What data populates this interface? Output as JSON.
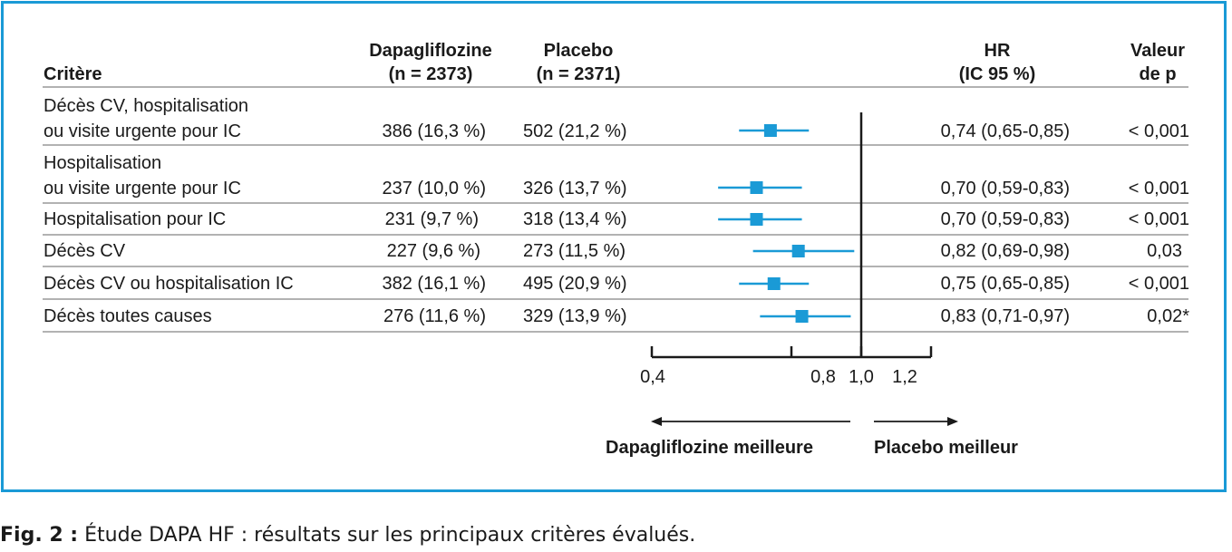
{
  "header": {
    "criterion": "Critère",
    "dapa_l1": "Dapagliflozine",
    "dapa_l2": "(n = 2373)",
    "placebo_l1": "Placebo",
    "placebo_l2": "(n = 2371)",
    "hr_l1": "HR",
    "hr_l2": "(IC 95 %)",
    "p_l1": "Valeur",
    "p_l2": "de p"
  },
  "colors": {
    "accent": "#1a9ad6",
    "text": "#1a1a1a",
    "rule": "#999999"
  },
  "chart_data": {
    "type": "forest",
    "x_ticks": [
      "0,4",
      "0,8",
      "1,0",
      "1,2"
    ],
    "x_tick_values": [
      0.4,
      0.8,
      1.0,
      1.2
    ],
    "reference_line": 1.0,
    "arrow_left_label": "Dapagliflozine meilleure",
    "arrow_right_label": "Placebo meilleur",
    "rows": [
      {
        "label_l1": "Décès CV, hospitalisation",
        "label_l2": "ou visite urgente pour IC",
        "dapa": "386 (16,3 %)",
        "placebo": "502 (21,2 %)",
        "hr_text": "0,74 (0,65-0,85)",
        "p": "< 0,001",
        "hr": 0.74,
        "lo": 0.65,
        "hi": 0.85
      },
      {
        "label_l1": "Hospitalisation",
        "label_l2": "ou visite urgente pour IC",
        "dapa": "237 (10,0 %)",
        "placebo": "326 (13,7 %)",
        "hr_text": "0,70 (0,59-0,83)",
        "p": "< 0,001",
        "hr": 0.7,
        "lo": 0.59,
        "hi": 0.83
      },
      {
        "label_l1": "",
        "label_l2": "Hospitalisation pour IC",
        "dapa": "231 (9,7 %)",
        "placebo": "318 (13,4 %)",
        "hr_text": "0,70 (0,59-0,83)",
        "p": "< 0,001",
        "hr": 0.7,
        "lo": 0.59,
        "hi": 0.83
      },
      {
        "label_l1": "",
        "label_l2": "Décès CV",
        "dapa": "227 (9,6 %)",
        "placebo": "273 (11,5 %)",
        "hr_text": "0,82 (0,69-0,98)",
        "p": "0,03",
        "hr": 0.82,
        "lo": 0.69,
        "hi": 0.98
      },
      {
        "label_l1": "",
        "label_l2": "Décès CV ou hospitalisation IC",
        "dapa": "382 (16,1 %)",
        "placebo": "495 (20,9 %)",
        "hr_text": "0,75 (0,65-0,85)",
        "p": "< 0,001",
        "hr": 0.75,
        "lo": 0.65,
        "hi": 0.85
      },
      {
        "label_l1": "",
        "label_l2": "Décès toutes causes",
        "dapa": "276 (11,6 %)",
        "placebo": "329 (13,9 %)",
        "hr_text": "0,83 (0,71-0,97)",
        "p": "0,02*",
        "hr": 0.83,
        "lo": 0.71,
        "hi": 0.97
      }
    ]
  },
  "caption": {
    "label": "Fig. 2 :",
    "text": " Étude DAPA HF : résultats sur les principaux critères évalués."
  }
}
